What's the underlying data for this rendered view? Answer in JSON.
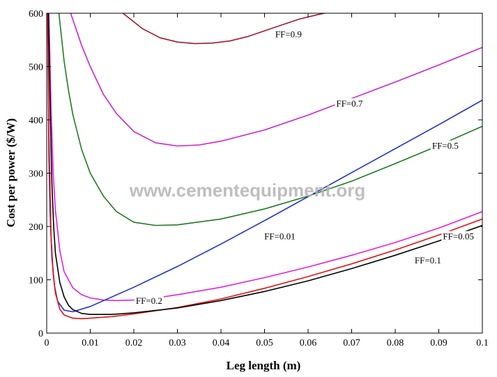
{
  "watermark": "www.cementequipment.org",
  "chart_data": {
    "type": "line",
    "xlabel": "Leg length (m)",
    "ylabel": "Cost per power ($/W)",
    "xlim": [
      0,
      0.1
    ],
    "ylim": [
      0,
      600
    ],
    "x_ticks": [
      "0",
      "0.01",
      "0.02",
      "0.03",
      "0.04",
      "0.05",
      "0.06",
      "0.07",
      "0.08",
      "0.09",
      "0.1"
    ],
    "y_ticks": [
      "0",
      "100",
      "200",
      "300",
      "400",
      "500",
      "600"
    ],
    "grid": false,
    "series": [
      {
        "name": "FF=0.9",
        "color": "#9b1b30",
        "x": [
          0.0175,
          0.022,
          0.026,
          0.03,
          0.034,
          0.038,
          0.042,
          0.046,
          0.05,
          0.054,
          0.058,
          0.062,
          0.066
        ],
        "y": [
          600,
          571,
          554,
          546,
          543,
          544,
          548,
          556,
          567,
          578,
          589,
          597,
          604
        ]
      },
      {
        "name": "FF=0.7",
        "color": "#cc22cc",
        "x": [
          0.0055,
          0.008,
          0.01,
          0.013,
          0.016,
          0.02,
          0.025,
          0.03,
          0.035,
          0.04,
          0.05,
          0.06,
          0.07,
          0.08,
          0.09,
          0.1
        ],
        "y": [
          600,
          540,
          500,
          448,
          412,
          378,
          357,
          351,
          353,
          360,
          381,
          409,
          440,
          471,
          503,
          536
        ]
      },
      {
        "name": "FF=0.5",
        "color": "#1f7a1f",
        "x": [
          0.0028,
          0.004,
          0.005,
          0.006,
          0.008,
          0.01,
          0.013,
          0.016,
          0.02,
          0.025,
          0.03,
          0.04,
          0.05,
          0.06,
          0.07,
          0.08,
          0.09,
          0.1
        ],
        "y": [
          600,
          510,
          455,
          410,
          345,
          300,
          257,
          228,
          208,
          202,
          203,
          214,
          233,
          257,
          285,
          318,
          352,
          388
        ]
      },
      {
        "name": "FF=0.2",
        "color": "#e020e0",
        "x": [
          0.0005,
          0.001,
          0.0015,
          0.002,
          0.003,
          0.004,
          0.006,
          0.008,
          0.01,
          0.013,
          0.016,
          0.02,
          0.025,
          0.03,
          0.04,
          0.05,
          0.06,
          0.07,
          0.08,
          0.09,
          0.1
        ],
        "y": [
          600,
          420,
          300,
          230,
          155,
          115,
          85,
          72,
          66,
          62,
          61,
          62,
          66,
          72,
          86,
          104,
          124,
          146,
          170,
          197,
          228
        ]
      },
      {
        "name": "FF=0.01",
        "color": "#1f2fc8",
        "x": [
          0.0002,
          0.0005,
          0.0008,
          0.0012,
          0.0018,
          0.0025,
          0.004,
          0.006,
          0.01,
          0.02,
          0.03,
          0.04,
          0.05,
          0.06,
          0.07,
          0.08,
          0.09,
          0.1
        ],
        "y": [
          600,
          330,
          220,
          140,
          88,
          60,
          43,
          40,
          50,
          86,
          125,
          167,
          211,
          256,
          301,
          346,
          391,
          437
        ]
      },
      {
        "name": "FF=0.05",
        "color": "#e01010",
        "x": [
          0.0002,
          0.0005,
          0.001,
          0.0015,
          0.002,
          0.003,
          0.004,
          0.006,
          0.008,
          0.01,
          0.015,
          0.02,
          0.03,
          0.04,
          0.05,
          0.06,
          0.07,
          0.08,
          0.09,
          0.1
        ],
        "y": [
          600,
          380,
          180,
          110,
          75,
          45,
          34,
          28,
          27,
          28,
          31,
          36,
          48,
          64,
          84,
          106,
          130,
          156,
          184,
          214
        ]
      },
      {
        "name": "FF=0.1",
        "color": "#000000",
        "x": [
          0.0004,
          0.0008,
          0.0012,
          0.0016,
          0.002,
          0.003,
          0.004,
          0.005,
          0.006,
          0.008,
          0.01,
          0.015,
          0.02,
          0.03,
          0.04,
          0.05,
          0.06,
          0.07,
          0.08,
          0.09,
          0.1
        ],
        "y": [
          600,
          420,
          280,
          200,
          150,
          95,
          68,
          52,
          44,
          37,
          35,
          35,
          38,
          47,
          61,
          78,
          98,
          121,
          146,
          173,
          202
        ]
      }
    ],
    "labels": [
      {
        "text": "FF=0.9",
        "x": 0.0555,
        "y": 560
      },
      {
        "text": "FF=0.7",
        "x": 0.0695,
        "y": 430
      },
      {
        "text": "FF=0.5",
        "x": 0.0915,
        "y": 351
      },
      {
        "text": "FF=0.2",
        "x": 0.0235,
        "y": 60
      },
      {
        "text": "FF=0.01",
        "x": 0.0535,
        "y": 181
      },
      {
        "text": "FF=0.05",
        "x": 0.0945,
        "y": 181
      },
      {
        "text": "FF=0.1",
        "x": 0.0875,
        "y": 136
      }
    ]
  }
}
